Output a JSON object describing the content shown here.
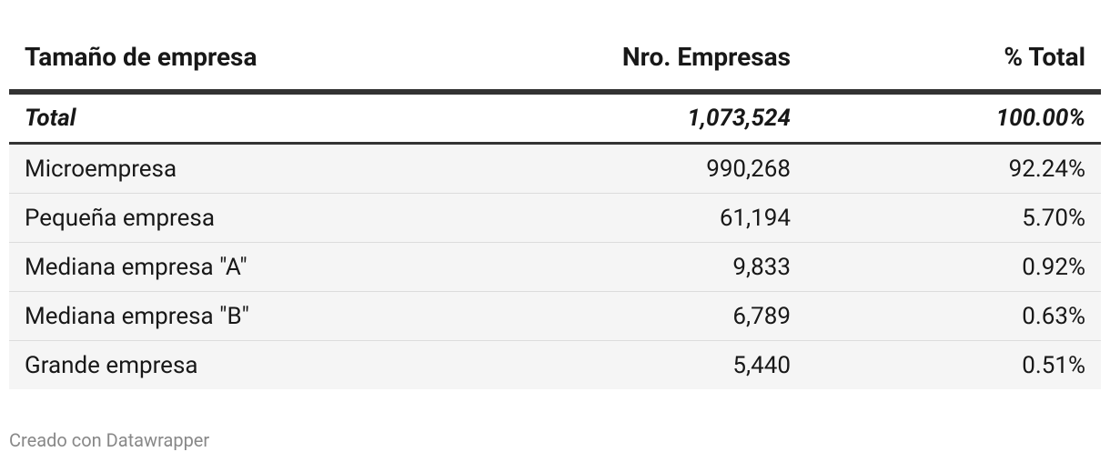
{
  "table": {
    "header": [
      "Tamaño de empresa",
      "Nro. Empresas",
      "% Total"
    ],
    "total": [
      "Total",
      "1,073,524",
      "100.00%"
    ],
    "rows": [
      [
        "Microempresa",
        "990,268",
        "92.24%"
      ],
      [
        "Pequeña empresa",
        "61,194",
        "5.70%"
      ],
      [
        "Mediana empresa \"A\"",
        "9,833",
        "0.92%"
      ],
      [
        "Mediana empresa \"B\"",
        "6,789",
        "0.63%"
      ],
      [
        "Grande empresa",
        "5,440",
        "0.51%"
      ]
    ]
  },
  "footer": "Creado con Datawrapper"
}
